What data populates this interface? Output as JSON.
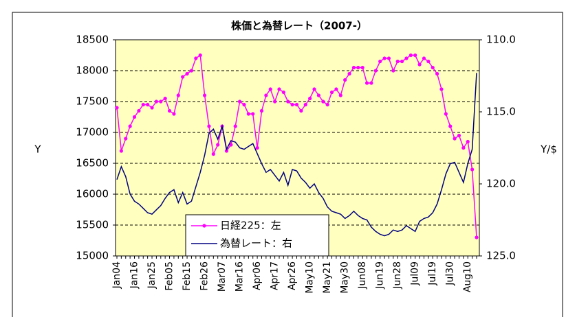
{
  "chart_data": {
    "type": "line",
    "title": "株価と為替レート（2007-）",
    "y_label": "Y",
    "y2_label": "Y/$",
    "categories": [
      "Jan04",
      null,
      null,
      null,
      "Jan16",
      null,
      null,
      null,
      "Jan25",
      null,
      null,
      null,
      "Feb05",
      null,
      null,
      null,
      "Feb15",
      null,
      null,
      null,
      "Feb26",
      null,
      null,
      null,
      "Mar07",
      null,
      null,
      null,
      "Mar16",
      null,
      null,
      null,
      "Apr06",
      null,
      null,
      null,
      "Apr17",
      null,
      null,
      null,
      "Apr26",
      null,
      null,
      null,
      "May10",
      null,
      null,
      null,
      "May21",
      null,
      null,
      null,
      "May30",
      null,
      null,
      null,
      "Jun08",
      null,
      null,
      null,
      "Jun19",
      null,
      null,
      null,
      "Jun28",
      null,
      null,
      null,
      "Jul09",
      null,
      null,
      null,
      "Jul19",
      null,
      null,
      null,
      "Jul30",
      null,
      null,
      null,
      "Aug10",
      null,
      null
    ],
    "series": [
      {
        "name": "日経225：左",
        "color": "#ff00ff",
        "marker": "circle",
        "axis": "y",
        "values": [
          17400,
          16700,
          16900,
          17100,
          17250,
          17350,
          17450,
          17450,
          17400,
          17500,
          17500,
          17550,
          17350,
          17300,
          17600,
          17900,
          17950,
          18000,
          18200,
          18250,
          17600,
          17100,
          16650,
          16800,
          17100,
          16700,
          16800,
          17100,
          17500,
          17450,
          17300,
          17300,
          16750,
          17350,
          17600,
          17700,
          17500,
          17700,
          17650,
          17500,
          17450,
          17450,
          17350,
          17450,
          17550,
          17700,
          17600,
          17500,
          17450,
          17650,
          17700,
          17600,
          17850,
          17950,
          18050,
          18050,
          18050,
          17800,
          17800,
          18000,
          18150,
          18200,
          18200,
          18000,
          18150,
          18150,
          18200,
          18250,
          18250,
          18100,
          18200,
          18150,
          18050,
          17950,
          17700,
          17300,
          17100,
          16900,
          16950,
          16750,
          16850,
          16400,
          15300
        ]
      },
      {
        "name": "為替レート：右",
        "color": "#000080",
        "marker": "none",
        "axis": "y2",
        "values": [
          119.7,
          118.8,
          119.5,
          120.7,
          121.2,
          121.4,
          121.7,
          122.0,
          122.1,
          121.8,
          121.5,
          121.0,
          120.6,
          120.4,
          121.3,
          120.6,
          121.4,
          121.2,
          120.2,
          119.2,
          118.0,
          116.5,
          116.2,
          116.9,
          116.0,
          117.6,
          117.0,
          117.1,
          117.5,
          117.6,
          117.4,
          117.2,
          117.9,
          118.6,
          119.2,
          119.0,
          119.4,
          119.8,
          119.2,
          120.1,
          119.0,
          119.1,
          119.6,
          119.9,
          120.3,
          120.0,
          120.6,
          121.0,
          121.6,
          121.9,
          122.0,
          122.1,
          122.4,
          122.2,
          121.9,
          122.2,
          122.4,
          122.5,
          123.0,
          123.3,
          123.5,
          123.6,
          123.5,
          123.2,
          123.3,
          123.2,
          122.9,
          123.1,
          123.3,
          122.6,
          122.4,
          122.3,
          122.0,
          121.4,
          120.4,
          119.3,
          118.6,
          118.5,
          119.2,
          119.9,
          118.6,
          117.6,
          112.3
        ]
      }
    ],
    "ylim": [
      15000,
      18500
    ],
    "yticks": [
      15000,
      15500,
      16000,
      16500,
      17000,
      17500,
      18000,
      18500
    ],
    "y2lim": [
      125,
      110
    ],
    "y2ticks": [
      {
        "value": 110,
        "label": "110.0"
      },
      {
        "value": 115,
        "label": "115.0"
      },
      {
        "value": 120,
        "label": "120.0"
      },
      {
        "value": 125,
        "label": "125.0"
      }
    ],
    "grid": true,
    "legend": "lower center",
    "plot_color": "#ffffc0"
  }
}
